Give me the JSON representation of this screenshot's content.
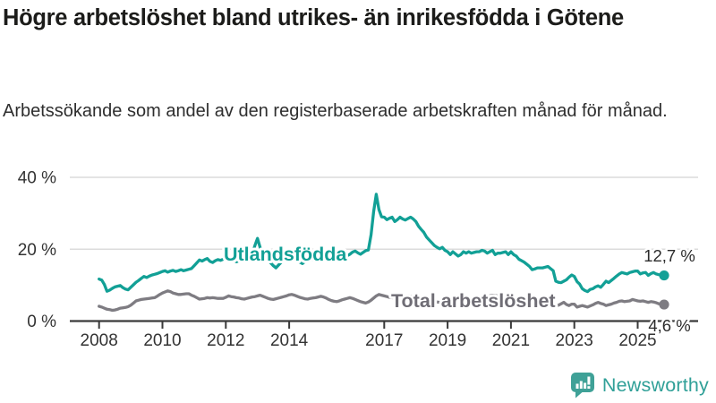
{
  "header": {
    "title": "Högre arbetslöshet bland utrikes- än inrikesfödda i Götene",
    "title_lines": [
      "Högre arbetslöshet bland utrikes- än inrikesfödda i Götene"
    ],
    "subtitle": "Arbetssökande som andel av den registerbaserade arbetskraften månad för månad.",
    "subtitle_lines": [
      "Arbetssökande som andel av den registerbaserade arbetskraften månad för månad."
    ]
  },
  "branding": {
    "logo_text": "Newsworthy",
    "logo_color": "#3fa197"
  },
  "colors": {
    "foreign_born_line": "#12a096",
    "total_line": "#7e7c82",
    "total_label": "#6f6d75",
    "grid": "#dcdcdc",
    "axis": "#3a3a3a",
    "tick_text": "#333333",
    "value_text": "#2b2b2b",
    "background": "#ffffff"
  },
  "chart_data": {
    "type": "line",
    "title": "Högre arbetslöshet bland utrikes- än inrikesfödda i Götene",
    "subtitle": "Arbetssökande som andel av den registerbaserade arbetskraften månad för månad.",
    "frequency": "monthly",
    "x_start": "2008-01",
    "x_end": "2025-11",
    "xlim_years": [
      2008,
      2025.92
    ],
    "ylim": [
      0,
      44
    ],
    "grid": "horizontal-only",
    "legend_position": "inline-labels",
    "y_ticks": [
      {
        "value": 0,
        "label": "0 %"
      },
      {
        "value": 20,
        "label": "20 %"
      },
      {
        "value": 40,
        "label": "40 %"
      }
    ],
    "x_ticks": [
      {
        "year": 2008,
        "label": "2008"
      },
      {
        "year": 2010,
        "label": "2010"
      },
      {
        "year": 2012,
        "label": "2012"
      },
      {
        "year": 2014,
        "label": "2014"
      },
      {
        "year": 2017,
        "label": "2017"
      },
      {
        "year": 2019,
        "label": "2019"
      },
      {
        "year": 2021,
        "label": "2021"
      },
      {
        "year": 2023,
        "label": "2023"
      },
      {
        "year": 2025,
        "label": "2025"
      }
    ],
    "series": [
      {
        "name": "Utlandsfödda",
        "color": "#12a096",
        "end_label": "12,7 %",
        "end_value": 12.7,
        "values": [
          11.7,
          11.4,
          10.2,
          8.3,
          8.6,
          9.1,
          9.5,
          9.7,
          9.9,
          9.3,
          8.9,
          8.7,
          9.4,
          10.1,
          10.8,
          11.3,
          11.9,
          12.4,
          12.1,
          12.5,
          12.8,
          13.0,
          13.2,
          13.5,
          13.8,
          14.0,
          13.6,
          13.9,
          14.1,
          13.8,
          14.0,
          14.3,
          14.0,
          14.2,
          14.4,
          14.6,
          15.4,
          16.2,
          17.0,
          16.7,
          17.1,
          17.4,
          16.6,
          16.3,
          16.8,
          17.1,
          16.9,
          17.2,
          17.3,
          17.0,
          16.6,
          16.9,
          16.5,
          16.8,
          17.2,
          17.6,
          18.0,
          18.4,
          18.5,
          21.0,
          23.0,
          20.5,
          18.5,
          17.5,
          16.8,
          16.2,
          15.4,
          14.8,
          15.6,
          16.4,
          17.0,
          17.6,
          18.2,
          17.8,
          17.3,
          16.9,
          16.4,
          16.0,
          16.6,
          17.1,
          17.5,
          17.0,
          17.4,
          17.8,
          18.4,
          18.0,
          17.6,
          17.2,
          16.8,
          16.5,
          17.0,
          17.6,
          18.1,
          18.5,
          18.2,
          18.6,
          19.2,
          19.5,
          19.0,
          18.6,
          19.1,
          19.6,
          19.8,
          24.0,
          30.5,
          35.3,
          31.0,
          29.0,
          28.9,
          28.2,
          28.6,
          28.9,
          27.7,
          28.2,
          28.9,
          28.4,
          28.1,
          28.5,
          28.9,
          28.4,
          27.7,
          26.4,
          25.5,
          24.7,
          23.4,
          22.6,
          21.8,
          21.0,
          20.5,
          20.1,
          20.5,
          19.7,
          19.3,
          18.5,
          19.3,
          18.7,
          18.1,
          18.5,
          19.3,
          18.9,
          19.3,
          18.9,
          19.1,
          19.3,
          19.3,
          19.7,
          19.5,
          18.9,
          19.3,
          19.7,
          18.5,
          18.9,
          18.9,
          19.1,
          19.3,
          18.5,
          19.3,
          18.5,
          18.1,
          17.2,
          16.8,
          16.4,
          15.8,
          15.2,
          14.3,
          14.5,
          14.8,
          14.8,
          14.8,
          15.0,
          15.2,
          14.6,
          14.0,
          11.1,
          10.8,
          10.7,
          11.1,
          11.5,
          12.2,
          12.8,
          12.4,
          11.0,
          10.3,
          9.0,
          8.5,
          8.2,
          8.8,
          9.0,
          9.5,
          9.8,
          9.4,
          10.2,
          11.1,
          10.7,
          11.3,
          11.9,
          12.5,
          13.1,
          13.5,
          13.3,
          13.1,
          13.5,
          13.7,
          13.9,
          13.9,
          13.1,
          13.4,
          13.5,
          12.7,
          13.2,
          13.5,
          13.1,
          12.9,
          12.8,
          12.7
        ]
      },
      {
        "name": "Total arbetslöshet",
        "color": "#7e7c82",
        "end_label": "4,6 %",
        "end_value": 4.6,
        "values": [
          4.1,
          3.9,
          3.6,
          3.3,
          3.2,
          3.0,
          3.1,
          3.3,
          3.6,
          3.7,
          3.8,
          4.0,
          4.4,
          5.0,
          5.6,
          5.8,
          6.0,
          6.1,
          6.2,
          6.3,
          6.4,
          6.5,
          6.9,
          7.4,
          7.8,
          8.1,
          8.4,
          8.2,
          7.8,
          7.6,
          7.4,
          7.4,
          7.5,
          7.6,
          7.6,
          7.2,
          6.9,
          6.5,
          6.1,
          6.2,
          6.3,
          6.5,
          6.4,
          6.5,
          6.4,
          6.3,
          6.3,
          6.3,
          6.6,
          7.0,
          6.8,
          6.7,
          6.5,
          6.4,
          6.2,
          6.1,
          6.3,
          6.5,
          6.7,
          6.8,
          7.0,
          7.2,
          6.9,
          6.6,
          6.3,
          6.1,
          6.0,
          6.2,
          6.4,
          6.6,
          6.8,
          7.0,
          7.3,
          7.4,
          7.2,
          6.9,
          6.6,
          6.4,
          6.2,
          6.1,
          6.3,
          6.4,
          6.5,
          6.7,
          6.9,
          6.7,
          6.4,
          6.0,
          5.7,
          5.5,
          5.4,
          5.6,
          5.9,
          6.1,
          6.3,
          6.5,
          6.3,
          6.0,
          5.7,
          5.4,
          5.2,
          5.0,
          5.3,
          5.8,
          6.4,
          7.0,
          7.4,
          7.2,
          7.0,
          6.8,
          6.6,
          6.5,
          6.4,
          6.5,
          6.6,
          6.8,
          6.9,
          7.0,
          6.9,
          6.8,
          6.6,
          6.4,
          6.2,
          6.0,
          5.8,
          5.6,
          5.5,
          5.4,
          5.3,
          5.2,
          5.3,
          5.4,
          5.5,
          5.4,
          5.3,
          5.2,
          5.1,
          5.2,
          5.3,
          5.2,
          5.3,
          5.4,
          5.5,
          5.6,
          5.7,
          5.8,
          6.0,
          6.6,
          7.0,
          7.2,
          7.1,
          7.0,
          6.8,
          6.6,
          6.5,
          6.6,
          6.7,
          6.6,
          6.4,
          6.2,
          6.0,
          5.8,
          5.6,
          5.4,
          5.2,
          5.1,
          5.0,
          5.0,
          5.1,
          5.0,
          4.9,
          4.8,
          4.6,
          4.4,
          4.4,
          4.8,
          5.2,
          4.6,
          4.3,
          4.7,
          4.7,
          3.9,
          4.1,
          4.3,
          4.1,
          3.9,
          4.2,
          4.5,
          4.9,
          5.2,
          4.9,
          4.7,
          4.3,
          4.5,
          4.7,
          5.0,
          5.2,
          5.5,
          5.6,
          5.4,
          5.5,
          5.6,
          6.0,
          5.8,
          5.6,
          5.5,
          5.6,
          5.4,
          5.2,
          5.4,
          5.3,
          5.1,
          4.8,
          4.7,
          4.6
        ]
      }
    ]
  }
}
